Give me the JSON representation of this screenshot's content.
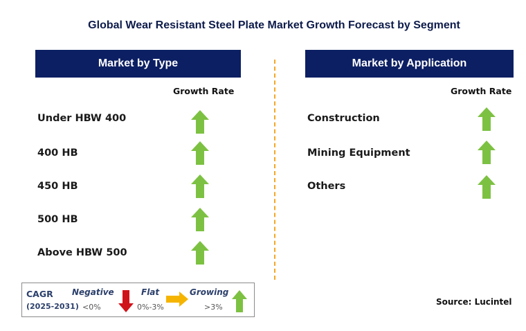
{
  "title": "Global Wear Resistant Steel Plate Market Growth Forecast by Segment",
  "left_panel": {
    "header": "Market by Type",
    "column_label": "Growth Rate",
    "rows": [
      {
        "label": "Under HBW 400",
        "trend": "growing"
      },
      {
        "label": "400 HB",
        "trend": "growing"
      },
      {
        "label": "450 HB",
        "trend": "growing"
      },
      {
        "label": "500 HB",
        "trend": "growing"
      },
      {
        "label": "Above HBW 500",
        "trend": "growing"
      }
    ]
  },
  "right_panel": {
    "header": "Market by Application",
    "column_label": "Growth Rate",
    "rows": [
      {
        "label": "Construction",
        "trend": "growing"
      },
      {
        "label": "Mining Equipment",
        "trend": "growing"
      },
      {
        "label": "Others",
        "trend": "growing"
      }
    ]
  },
  "legend": {
    "cagr_label": "CAGR",
    "period": "(2025-2031)",
    "negative": {
      "label": "Negative",
      "range": "<0%",
      "icon": "down-arrow-icon",
      "color": "#d0141b"
    },
    "flat": {
      "label": "Flat",
      "range": "0%-3%",
      "icon": "right-arrow-icon",
      "color": "#f5b400"
    },
    "growing": {
      "label": "Growing",
      "range": ">3%",
      "icon": "up-arrow-icon",
      "color": "#7dc142"
    }
  },
  "source": "Source: Lucintel",
  "colors": {
    "header_bg": "#0c1f63",
    "divider": "#f5a623",
    "growing": "#7dc142"
  }
}
